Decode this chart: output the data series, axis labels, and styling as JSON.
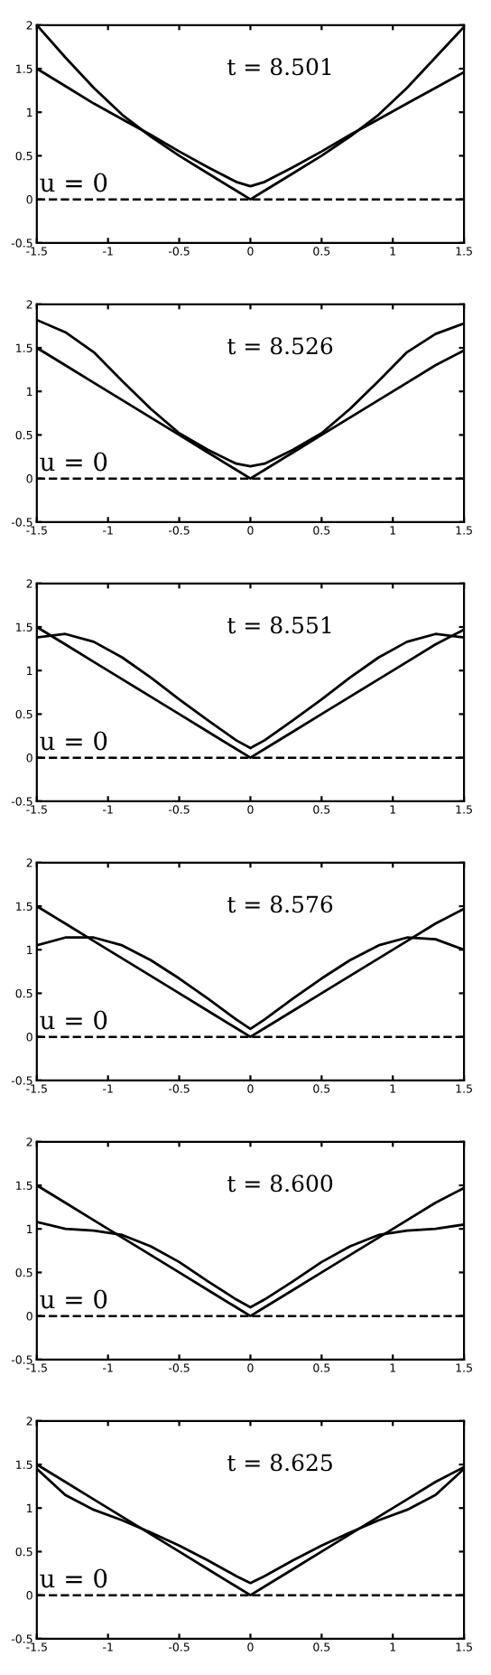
{
  "chart_data": [
    {
      "type": "line",
      "x": [
        -1.5,
        -1.3,
        -1.1,
        -0.9,
        -0.7,
        -0.5,
        -0.3,
        -0.1,
        0,
        0.1,
        0.3,
        0.5,
        0.7,
        0.9,
        1.1,
        1.3,
        1.5
      ],
      "xlim": [
        -1.5,
        1.5
      ],
      "ylim": [
        -0.5,
        2
      ],
      "xticks": [
        -1.5,
        -1,
        -0.5,
        0,
        0.5,
        1,
        1.5
      ],
      "yticks": [
        -0.5,
        0,
        0.5,
        1,
        1.5,
        2
      ],
      "grid": false,
      "legend": false,
      "annotations": [
        "t = 8.501"
      ],
      "ref_lines": [
        {
          "axis": "y",
          "value": 0,
          "label": "u = 0",
          "color": "#000000",
          "line_style": "dashed"
        }
      ],
      "series": [
        {
          "color": "#000000",
          "values": [
            2.0,
            1.63,
            1.28,
            0.97,
            0.72,
            0.5,
            0.3,
            0.1,
            0,
            0.1,
            0.3,
            0.5,
            0.72,
            0.97,
            1.28,
            1.63,
            1.98
          ]
        },
        {
          "color": "#000000",
          "values": [
            1.5,
            1.3,
            1.1,
            0.92,
            0.74,
            0.55,
            0.37,
            0.2,
            0.15,
            0.2,
            0.37,
            0.55,
            0.74,
            0.92,
            1.1,
            1.28,
            1.46
          ]
        }
      ]
    },
    {
      "type": "line",
      "x": [
        -1.5,
        -1.3,
        -1.1,
        -0.9,
        -0.7,
        -0.5,
        -0.3,
        -0.1,
        0,
        0.1,
        0.3,
        0.5,
        0.7,
        0.9,
        1.1,
        1.3,
        1.5
      ],
      "xlim": [
        -1.5,
        1.5
      ],
      "ylim": [
        -0.5,
        2
      ],
      "xticks": [
        -1.5,
        -1,
        -0.5,
        0,
        0.5,
        1,
        1.5
      ],
      "yticks": [
        -0.5,
        0,
        0.5,
        1,
        1.5,
        2
      ],
      "grid": false,
      "legend": false,
      "annotations": [
        "t = 8.526"
      ],
      "ref_lines": [
        {
          "axis": "y",
          "value": 0,
          "label": "u = 0",
          "color": "#000000",
          "line_style": "dashed"
        }
      ],
      "series": [
        {
          "color": "#000000",
          "values": [
            1.5,
            1.3,
            1.1,
            0.9,
            0.7,
            0.5,
            0.3,
            0.1,
            0,
            0.1,
            0.3,
            0.5,
            0.7,
            0.9,
            1.1,
            1.3,
            1.47
          ]
        },
        {
          "color": "#000000",
          "values": [
            1.82,
            1.68,
            1.45,
            1.12,
            0.8,
            0.52,
            0.33,
            0.17,
            0.14,
            0.17,
            0.33,
            0.52,
            0.8,
            1.12,
            1.45,
            1.66,
            1.78
          ]
        }
      ]
    },
    {
      "type": "line",
      "x": [
        -1.5,
        -1.3,
        -1.1,
        -0.9,
        -0.7,
        -0.5,
        -0.3,
        -0.1,
        0,
        0.1,
        0.3,
        0.5,
        0.7,
        0.9,
        1.1,
        1.3,
        1.5
      ],
      "xlim": [
        -1.5,
        1.5
      ],
      "ylim": [
        -0.5,
        2
      ],
      "xticks": [
        -1.5,
        -1,
        -0.5,
        0,
        0.5,
        1,
        1.5
      ],
      "yticks": [
        -0.5,
        0,
        0.5,
        1,
        1.5,
        2
      ],
      "grid": false,
      "legend": false,
      "annotations": [
        "t = 8.551"
      ],
      "ref_lines": [
        {
          "axis": "y",
          "value": 0,
          "label": "u = 0",
          "color": "#000000",
          "line_style": "dashed"
        }
      ],
      "series": [
        {
          "color": "#000000",
          "values": [
            1.5,
            1.3,
            1.1,
            0.9,
            0.7,
            0.5,
            0.3,
            0.1,
            0,
            0.1,
            0.3,
            0.5,
            0.7,
            0.9,
            1.1,
            1.3,
            1.47
          ]
        },
        {
          "color": "#000000",
          "values": [
            1.38,
            1.42,
            1.33,
            1.15,
            0.92,
            0.67,
            0.43,
            0.2,
            0.11,
            0.2,
            0.43,
            0.67,
            0.92,
            1.15,
            1.33,
            1.42,
            1.38
          ]
        }
      ]
    },
    {
      "type": "line",
      "x": [
        -1.5,
        -1.3,
        -1.1,
        -0.9,
        -0.7,
        -0.5,
        -0.3,
        -0.1,
        0,
        0.1,
        0.3,
        0.5,
        0.7,
        0.9,
        1.1,
        1.3,
        1.5
      ],
      "xlim": [
        -1.5,
        1.5
      ],
      "ylim": [
        -0.5,
        2
      ],
      "xticks": [
        -1.5,
        -1,
        -0.5,
        0,
        0.5,
        1,
        1.5
      ],
      "yticks": [
        -0.5,
        0,
        0.5,
        1,
        1.5,
        2
      ],
      "grid": false,
      "legend": false,
      "annotations": [
        "t = 8.576"
      ],
      "ref_lines": [
        {
          "axis": "y",
          "value": 0,
          "label": "u = 0",
          "color": "#000000",
          "line_style": "dashed"
        }
      ],
      "series": [
        {
          "color": "#000000",
          "values": [
            1.5,
            1.3,
            1.1,
            0.9,
            0.7,
            0.5,
            0.3,
            0.1,
            0,
            0.1,
            0.3,
            0.5,
            0.7,
            0.9,
            1.1,
            1.3,
            1.47
          ]
        },
        {
          "color": "#000000",
          "values": [
            1.05,
            1.14,
            1.14,
            1.05,
            0.88,
            0.67,
            0.44,
            0.2,
            0.09,
            0.2,
            0.44,
            0.67,
            0.88,
            1.05,
            1.14,
            1.12,
            1.0
          ]
        }
      ]
    },
    {
      "type": "line",
      "x": [
        -1.5,
        -1.3,
        -1.1,
        -0.9,
        -0.7,
        -0.5,
        -0.3,
        -0.1,
        0,
        0.1,
        0.3,
        0.5,
        0.7,
        0.9,
        1.1,
        1.3,
        1.5
      ],
      "xlim": [
        -1.5,
        1.5
      ],
      "ylim": [
        -0.5,
        2
      ],
      "xticks": [
        -1.5,
        -1,
        -0.5,
        0,
        0.5,
        1,
        1.5
      ],
      "yticks": [
        -0.5,
        0,
        0.5,
        1,
        1.5,
        2
      ],
      "grid": false,
      "legend": false,
      "annotations": [
        "t = 8.600"
      ],
      "ref_lines": [
        {
          "axis": "y",
          "value": 0,
          "label": "u = 0",
          "color": "#000000",
          "line_style": "dashed"
        }
      ],
      "series": [
        {
          "color": "#000000",
          "values": [
            1.5,
            1.3,
            1.1,
            0.9,
            0.7,
            0.5,
            0.3,
            0.1,
            0,
            0.1,
            0.3,
            0.5,
            0.7,
            0.9,
            1.1,
            1.3,
            1.47
          ]
        },
        {
          "color": "#000000",
          "values": [
            1.08,
            1.0,
            0.98,
            0.93,
            0.8,
            0.62,
            0.4,
            0.19,
            0.1,
            0.19,
            0.4,
            0.62,
            0.8,
            0.93,
            0.98,
            1.0,
            1.05
          ]
        }
      ]
    },
    {
      "type": "line",
      "x": [
        -1.5,
        -1.3,
        -1.1,
        -0.9,
        -0.7,
        -0.5,
        -0.3,
        -0.1,
        0,
        0.1,
        0.3,
        0.5,
        0.7,
        0.9,
        1.1,
        1.3,
        1.5
      ],
      "xlim": [
        -1.5,
        1.5
      ],
      "ylim": [
        -0.5,
        2
      ],
      "xticks": [
        -1.5,
        -1,
        -0.5,
        0,
        0.5,
        1,
        1.5
      ],
      "yticks": [
        -0.5,
        0,
        0.5,
        1,
        1.5,
        2
      ],
      "grid": false,
      "legend": false,
      "annotations": [
        "t = 8.625"
      ],
      "ref_lines": [
        {
          "axis": "y",
          "value": 0,
          "label": "u = 0",
          "color": "#000000",
          "line_style": "dashed"
        }
      ],
      "series": [
        {
          "color": "#000000",
          "values": [
            1.5,
            1.3,
            1.1,
            0.9,
            0.7,
            0.5,
            0.3,
            0.1,
            0,
            0.1,
            0.3,
            0.5,
            0.7,
            0.9,
            1.1,
            1.3,
            1.47
          ]
        },
        {
          "color": "#000000",
          "values": [
            1.45,
            1.15,
            0.98,
            0.86,
            0.72,
            0.57,
            0.4,
            0.22,
            0.14,
            0.22,
            0.4,
            0.57,
            0.72,
            0.86,
            0.98,
            1.15,
            1.45
          ]
        }
      ]
    }
  ]
}
